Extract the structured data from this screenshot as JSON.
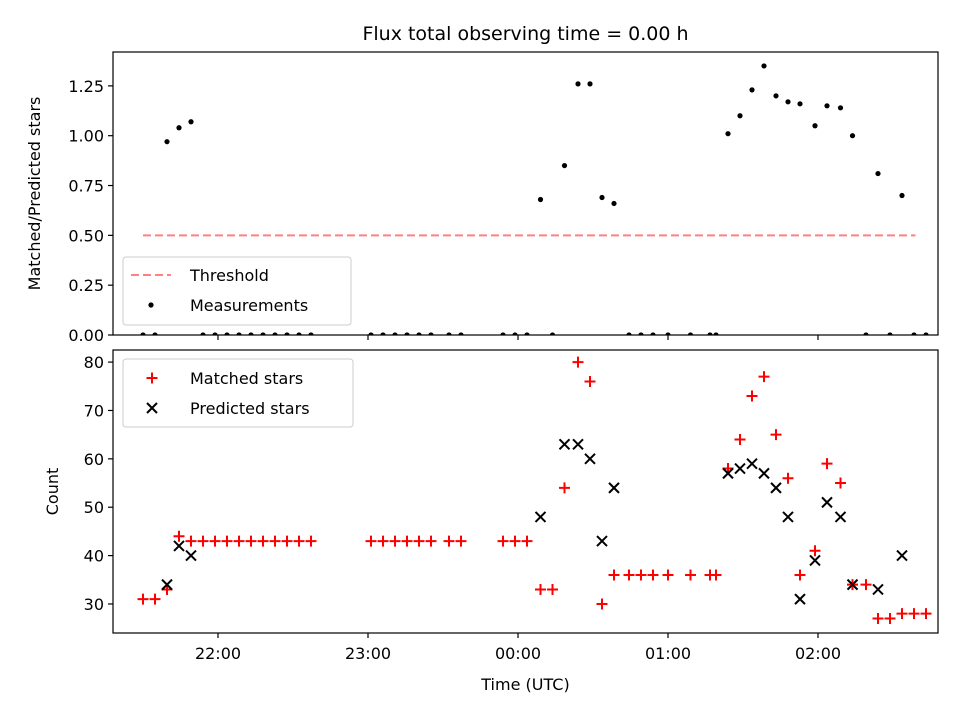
{
  "chart_data": [
    {
      "type": "scatter",
      "title": "Flux total observing time = 0.00 h",
      "ylabel": "Matched/Predicted stars",
      "ylim": [
        0,
        1.42
      ],
      "yticks": [
        0.0,
        0.25,
        0.5,
        0.75,
        1.0,
        1.25
      ],
      "ytick_labels": [
        "0.00",
        "0.25",
        "0.50",
        "0.75",
        "1.00",
        "1.25"
      ],
      "xlim_hours": [
        21.3,
        26.8
      ],
      "legend": {
        "position": "lower-left",
        "entries": [
          "Threshold",
          "Measurements"
        ]
      },
      "threshold": {
        "name": "Threshold",
        "y": 0.5,
        "x_start": 21.5,
        "x_end": 26.65,
        "color": "#ff8080",
        "style": "dashed"
      },
      "series": [
        {
          "name": "Measurements",
          "color": "#000000",
          "marker": "dot",
          "points": [
            [
              21.5,
              0
            ],
            [
              21.58,
              0
            ],
            [
              21.66,
              0.97
            ],
            [
              21.74,
              1.04
            ],
            [
              21.82,
              1.07
            ],
            [
              21.9,
              0
            ],
            [
              21.98,
              0
            ],
            [
              22.06,
              0
            ],
            [
              22.14,
              0
            ],
            [
              22.22,
              0
            ],
            [
              22.3,
              0
            ],
            [
              22.38,
              0
            ],
            [
              22.46,
              0
            ],
            [
              22.54,
              0
            ],
            [
              22.62,
              0
            ],
            [
              23.02,
              0
            ],
            [
              23.1,
              0
            ],
            [
              23.18,
              0
            ],
            [
              23.26,
              0
            ],
            [
              23.34,
              0
            ],
            [
              23.42,
              0
            ],
            [
              23.54,
              0
            ],
            [
              23.62,
              0
            ],
            [
              23.9,
              0
            ],
            [
              23.98,
              0
            ],
            [
              24.06,
              0
            ],
            [
              24.15,
              0.68
            ],
            [
              24.23,
              0
            ],
            [
              24.31,
              0.85
            ],
            [
              24.4,
              1.26
            ],
            [
              24.48,
              1.26
            ],
            [
              24.56,
              0.69
            ],
            [
              24.64,
              0.66
            ],
            [
              24.74,
              0
            ],
            [
              24.82,
              0
            ],
            [
              24.9,
              0
            ],
            [
              25.0,
              0
            ],
            [
              25.15,
              0
            ],
            [
              25.28,
              0
            ],
            [
              25.32,
              0
            ],
            [
              25.4,
              1.01
            ],
            [
              25.48,
              1.1
            ],
            [
              25.56,
              1.23
            ],
            [
              25.64,
              1.35
            ],
            [
              25.72,
              1.2
            ],
            [
              25.8,
              1.17
            ],
            [
              25.88,
              1.16
            ],
            [
              25.98,
              1.05
            ],
            [
              26.06,
              1.15
            ],
            [
              26.15,
              1.14
            ],
            [
              26.23,
              1.0
            ],
            [
              26.32,
              0
            ],
            [
              26.4,
              0.81
            ],
            [
              26.48,
              0
            ],
            [
              26.56,
              0.7
            ],
            [
              26.64,
              0
            ],
            [
              26.72,
              0
            ]
          ]
        }
      ]
    },
    {
      "type": "scatter",
      "xlabel": "Time (UTC)",
      "ylabel": "Count",
      "ylim": [
        24,
        82.5
      ],
      "yticks": [
        30,
        40,
        50,
        60,
        70,
        80
      ],
      "xlim_hours": [
        21.3,
        26.8
      ],
      "xticks_hours": [
        22,
        23,
        24,
        25,
        26
      ],
      "xtick_labels": [
        "22:00",
        "23:00",
        "00:00",
        "01:00",
        "02:00"
      ],
      "legend": {
        "position": "top-left",
        "entries": [
          "Matched stars",
          "Predicted stars"
        ]
      },
      "series": [
        {
          "name": "Matched stars",
          "color": "#ff0000",
          "marker": "plus",
          "points": [
            [
              21.5,
              31
            ],
            [
              21.58,
              31
            ],
            [
              21.66,
              33
            ],
            [
              21.74,
              44
            ],
            [
              21.82,
              43
            ],
            [
              21.9,
              43
            ],
            [
              21.98,
              43
            ],
            [
              22.06,
              43
            ],
            [
              22.14,
              43
            ],
            [
              22.22,
              43
            ],
            [
              22.3,
              43
            ],
            [
              22.38,
              43
            ],
            [
              22.46,
              43
            ],
            [
              22.54,
              43
            ],
            [
              22.62,
              43
            ],
            [
              23.02,
              43
            ],
            [
              23.1,
              43
            ],
            [
              23.18,
              43
            ],
            [
              23.26,
              43
            ],
            [
              23.34,
              43
            ],
            [
              23.42,
              43
            ],
            [
              23.54,
              43
            ],
            [
              23.62,
              43
            ],
            [
              23.9,
              43
            ],
            [
              23.98,
              43
            ],
            [
              24.06,
              43
            ],
            [
              24.15,
              33
            ],
            [
              24.23,
              33
            ],
            [
              24.31,
              54
            ],
            [
              24.4,
              80
            ],
            [
              24.48,
              76
            ],
            [
              24.56,
              30
            ],
            [
              24.64,
              36
            ],
            [
              24.74,
              36
            ],
            [
              24.82,
              36
            ],
            [
              24.9,
              36
            ],
            [
              25.0,
              36
            ],
            [
              25.15,
              36
            ],
            [
              25.28,
              36
            ],
            [
              25.32,
              36
            ],
            [
              25.4,
              58
            ],
            [
              25.48,
              64
            ],
            [
              25.56,
              73
            ],
            [
              25.64,
              77
            ],
            [
              25.72,
              65
            ],
            [
              25.8,
              56
            ],
            [
              25.88,
              36
            ],
            [
              25.98,
              41
            ],
            [
              26.06,
              59
            ],
            [
              26.15,
              55
            ],
            [
              26.23,
              34
            ],
            [
              26.32,
              34
            ],
            [
              26.4,
              27
            ],
            [
              26.48,
              27
            ],
            [
              26.56,
              28
            ],
            [
              26.64,
              28
            ],
            [
              26.72,
              28
            ]
          ]
        },
        {
          "name": "Predicted stars",
          "color": "#000000",
          "marker": "x",
          "points": [
            [
              21.66,
              34
            ],
            [
              21.74,
              42
            ],
            [
              21.82,
              40
            ],
            [
              24.15,
              48
            ],
            [
              24.31,
              63
            ],
            [
              24.4,
              63
            ],
            [
              24.48,
              60
            ],
            [
              24.56,
              43
            ],
            [
              24.64,
              54
            ],
            [
              25.4,
              57
            ],
            [
              25.48,
              58
            ],
            [
              25.56,
              59
            ],
            [
              25.64,
              57
            ],
            [
              25.72,
              54
            ],
            [
              25.8,
              48
            ],
            [
              25.88,
              31
            ],
            [
              25.98,
              39
            ],
            [
              26.06,
              51
            ],
            [
              26.15,
              48
            ],
            [
              26.23,
              34
            ],
            [
              26.4,
              33
            ],
            [
              26.56,
              40
            ]
          ]
        }
      ]
    }
  ]
}
